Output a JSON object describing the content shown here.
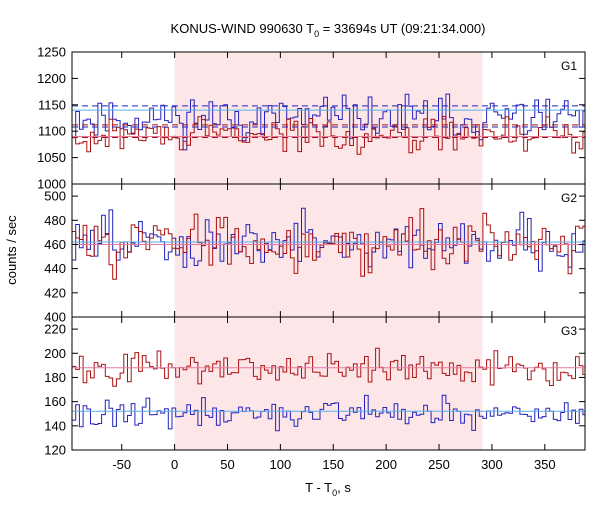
{
  "title": {
    "main": "KONUS-WIND 990630 T",
    "sub": "0",
    "rest": " = 33694s UT (09:21:34.000)"
  },
  "xlabel": {
    "main": "T - T",
    "sub": "0",
    "rest": ", s"
  },
  "ylabel": "counts / sec",
  "colors": {
    "shade": "#fde6e8",
    "blue": "#2222bb",
    "red": "#aa1111",
    "blue_bg": "#5aaee8",
    "red_bg": "#e67aa0",
    "frame": "#000000"
  },
  "chart_data": [
    {
      "type": "line",
      "panel": "G1",
      "xlim": [
        -97,
        388
      ],
      "ylim": [
        1000,
        1250
      ],
      "yticks": [
        1000,
        1050,
        1100,
        1150,
        1200,
        1250
      ],
      "shaded_interval": [
        0,
        291
      ],
      "series": [
        {
          "color": "blue",
          "bin_width": 3.5,
          "mean": 1125,
          "noise": 20,
          "seed": 11,
          "background": 1140,
          "background_color": "blue_bg",
          "bg_limits": [
            1108,
            1148
          ]
        },
        {
          "color": "red",
          "bin_width": 3.5,
          "mean": 1093,
          "noise": 16,
          "seed": 29,
          "background": 1090,
          "background_color": "red_bg",
          "bg_limits": [
            1088,
            1112
          ],
          "early_dip": {
            "until": -60,
            "value": 1072
          }
        }
      ]
    },
    {
      "type": "line",
      "panel": "G2",
      "xlim": [
        -97,
        388
      ],
      "ylim": [
        400,
        510
      ],
      "yticks": [
        400,
        420,
        440,
        460,
        480,
        500
      ],
      "shaded_interval": [
        0,
        291
      ],
      "series": [
        {
          "color": "blue",
          "bin_width": 3.5,
          "mean": 462,
          "noise": 11,
          "seed": 47,
          "background": 462,
          "background_color": "blue_bg"
        },
        {
          "color": "red",
          "bin_width": 3.5,
          "mean": 462,
          "noise": 11,
          "seed": 83,
          "background": 460,
          "background_color": "red_bg"
        }
      ]
    },
    {
      "type": "line",
      "panel": "G3",
      "xlim": [
        -97,
        388
      ],
      "ylim": [
        120,
        230
      ],
      "yticks": [
        120,
        140,
        160,
        180,
        200,
        220
      ],
      "shaded_interval": [
        0,
        291
      ],
      "series": [
        {
          "color": "red",
          "bin_width": 3.5,
          "mean": 188,
          "noise": 7,
          "seed": 101,
          "background": 188,
          "background_color": "red_bg"
        },
        {
          "color": "blue",
          "bin_width": 3.5,
          "mean": 150,
          "noise": 6,
          "seed": 131,
          "background": 152,
          "background_color": "blue_bg"
        }
      ]
    }
  ],
  "xticks": [
    -50,
    0,
    50,
    100,
    150,
    200,
    250,
    300,
    350
  ]
}
